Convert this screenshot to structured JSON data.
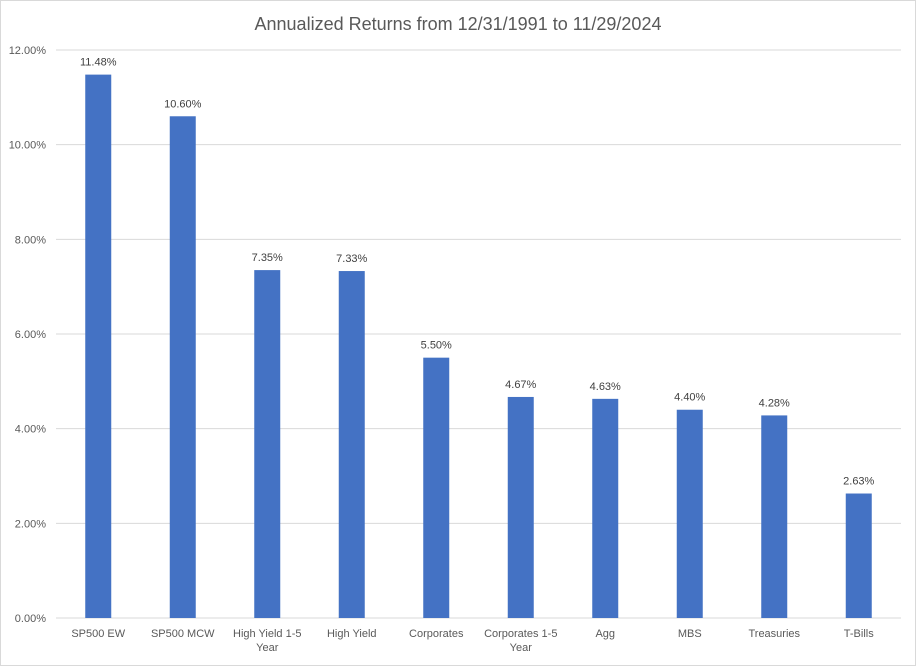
{
  "chart_data": {
    "type": "bar",
    "title": "Annualized Returns from 12/31/1991 to 11/29/2024",
    "categories": [
      "SP500 EW",
      "SP500 MCW",
      "High Yield 1-5 Year",
      "High Yield",
      "Corporates",
      "Corporates 1-5 Year",
      "Agg",
      "MBS",
      "Treasuries",
      "T-Bills"
    ],
    "category_label_lines": [
      [
        "SP500 EW"
      ],
      [
        "SP500 MCW"
      ],
      [
        "High Yield 1-5",
        "Year"
      ],
      [
        "High Yield"
      ],
      [
        "Corporates"
      ],
      [
        "Corporates 1-5",
        "Year"
      ],
      [
        "Agg"
      ],
      [
        "MBS"
      ],
      [
        "Treasuries"
      ],
      [
        "T-Bills"
      ]
    ],
    "values": [
      11.48,
      10.6,
      7.35,
      7.33,
      5.5,
      4.67,
      4.63,
      4.4,
      4.28,
      2.63
    ],
    "data_labels": [
      "11.48%",
      "10.60%",
      "7.35%",
      "7.33%",
      "5.50%",
      "4.67%",
      "4.63%",
      "4.40%",
      "4.28%",
      "2.63%"
    ],
    "ylim": [
      0,
      12
    ],
    "yticks": [
      0,
      2,
      4,
      6,
      8,
      10,
      12
    ],
    "ytick_labels": [
      "0.00%",
      "2.00%",
      "4.00%",
      "6.00%",
      "8.00%",
      "10.00%",
      "12.00%"
    ],
    "xlabel": "",
    "ylabel": "",
    "grid": true,
    "legend": false,
    "colors": {
      "bar": "#4472C4",
      "grid": "#d9d9d9",
      "text": "#595959",
      "data_label": "#404040"
    }
  }
}
